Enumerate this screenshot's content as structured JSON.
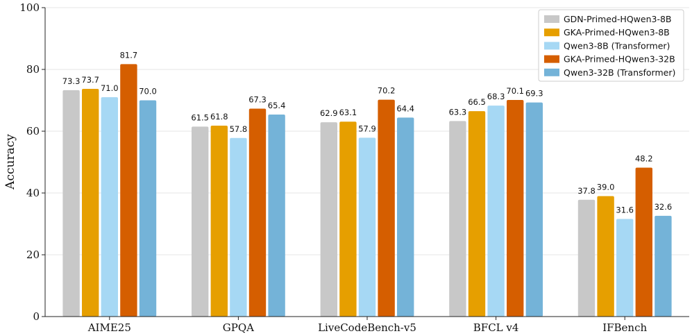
{
  "chart_data": {
    "type": "bar",
    "categories": [
      "AIME25",
      "GPQA",
      "LiveCodeBench-v5",
      "BFCL v4",
      "IFBench"
    ],
    "series": [
      {
        "name": "GDN-Primed-HQwen3-8B",
        "color": "#c8c8c8",
        "values": [
          73.3,
          61.5,
          62.9,
          63.3,
          37.8
        ]
      },
      {
        "name": "GKA-Primed-HQwen3-8B",
        "color": "#e69f00",
        "values": [
          73.7,
          61.8,
          63.1,
          66.5,
          39.0
        ]
      },
      {
        "name": "Qwen3-8B (Transformer)",
        "color": "#a6d8f4",
        "values": [
          71.0,
          57.8,
          57.9,
          68.3,
          31.6
        ]
      },
      {
        "name": "GKA-Primed-HQwen3-32B",
        "color": "#d55e00",
        "values": [
          81.7,
          67.3,
          70.2,
          70.1,
          48.2
        ]
      },
      {
        "name": "Qwen3-32B (Transformer)",
        "color": "#74b3d8",
        "values": [
          70.0,
          65.4,
          64.4,
          69.3,
          32.6
        ]
      }
    ],
    "ylabel": "Accuracy",
    "xlabel": "",
    "ylim": [
      0,
      100
    ],
    "yticks": [
      0,
      20,
      40,
      60,
      80,
      100
    ],
    "grid": true,
    "legend_position": "top-right"
  }
}
